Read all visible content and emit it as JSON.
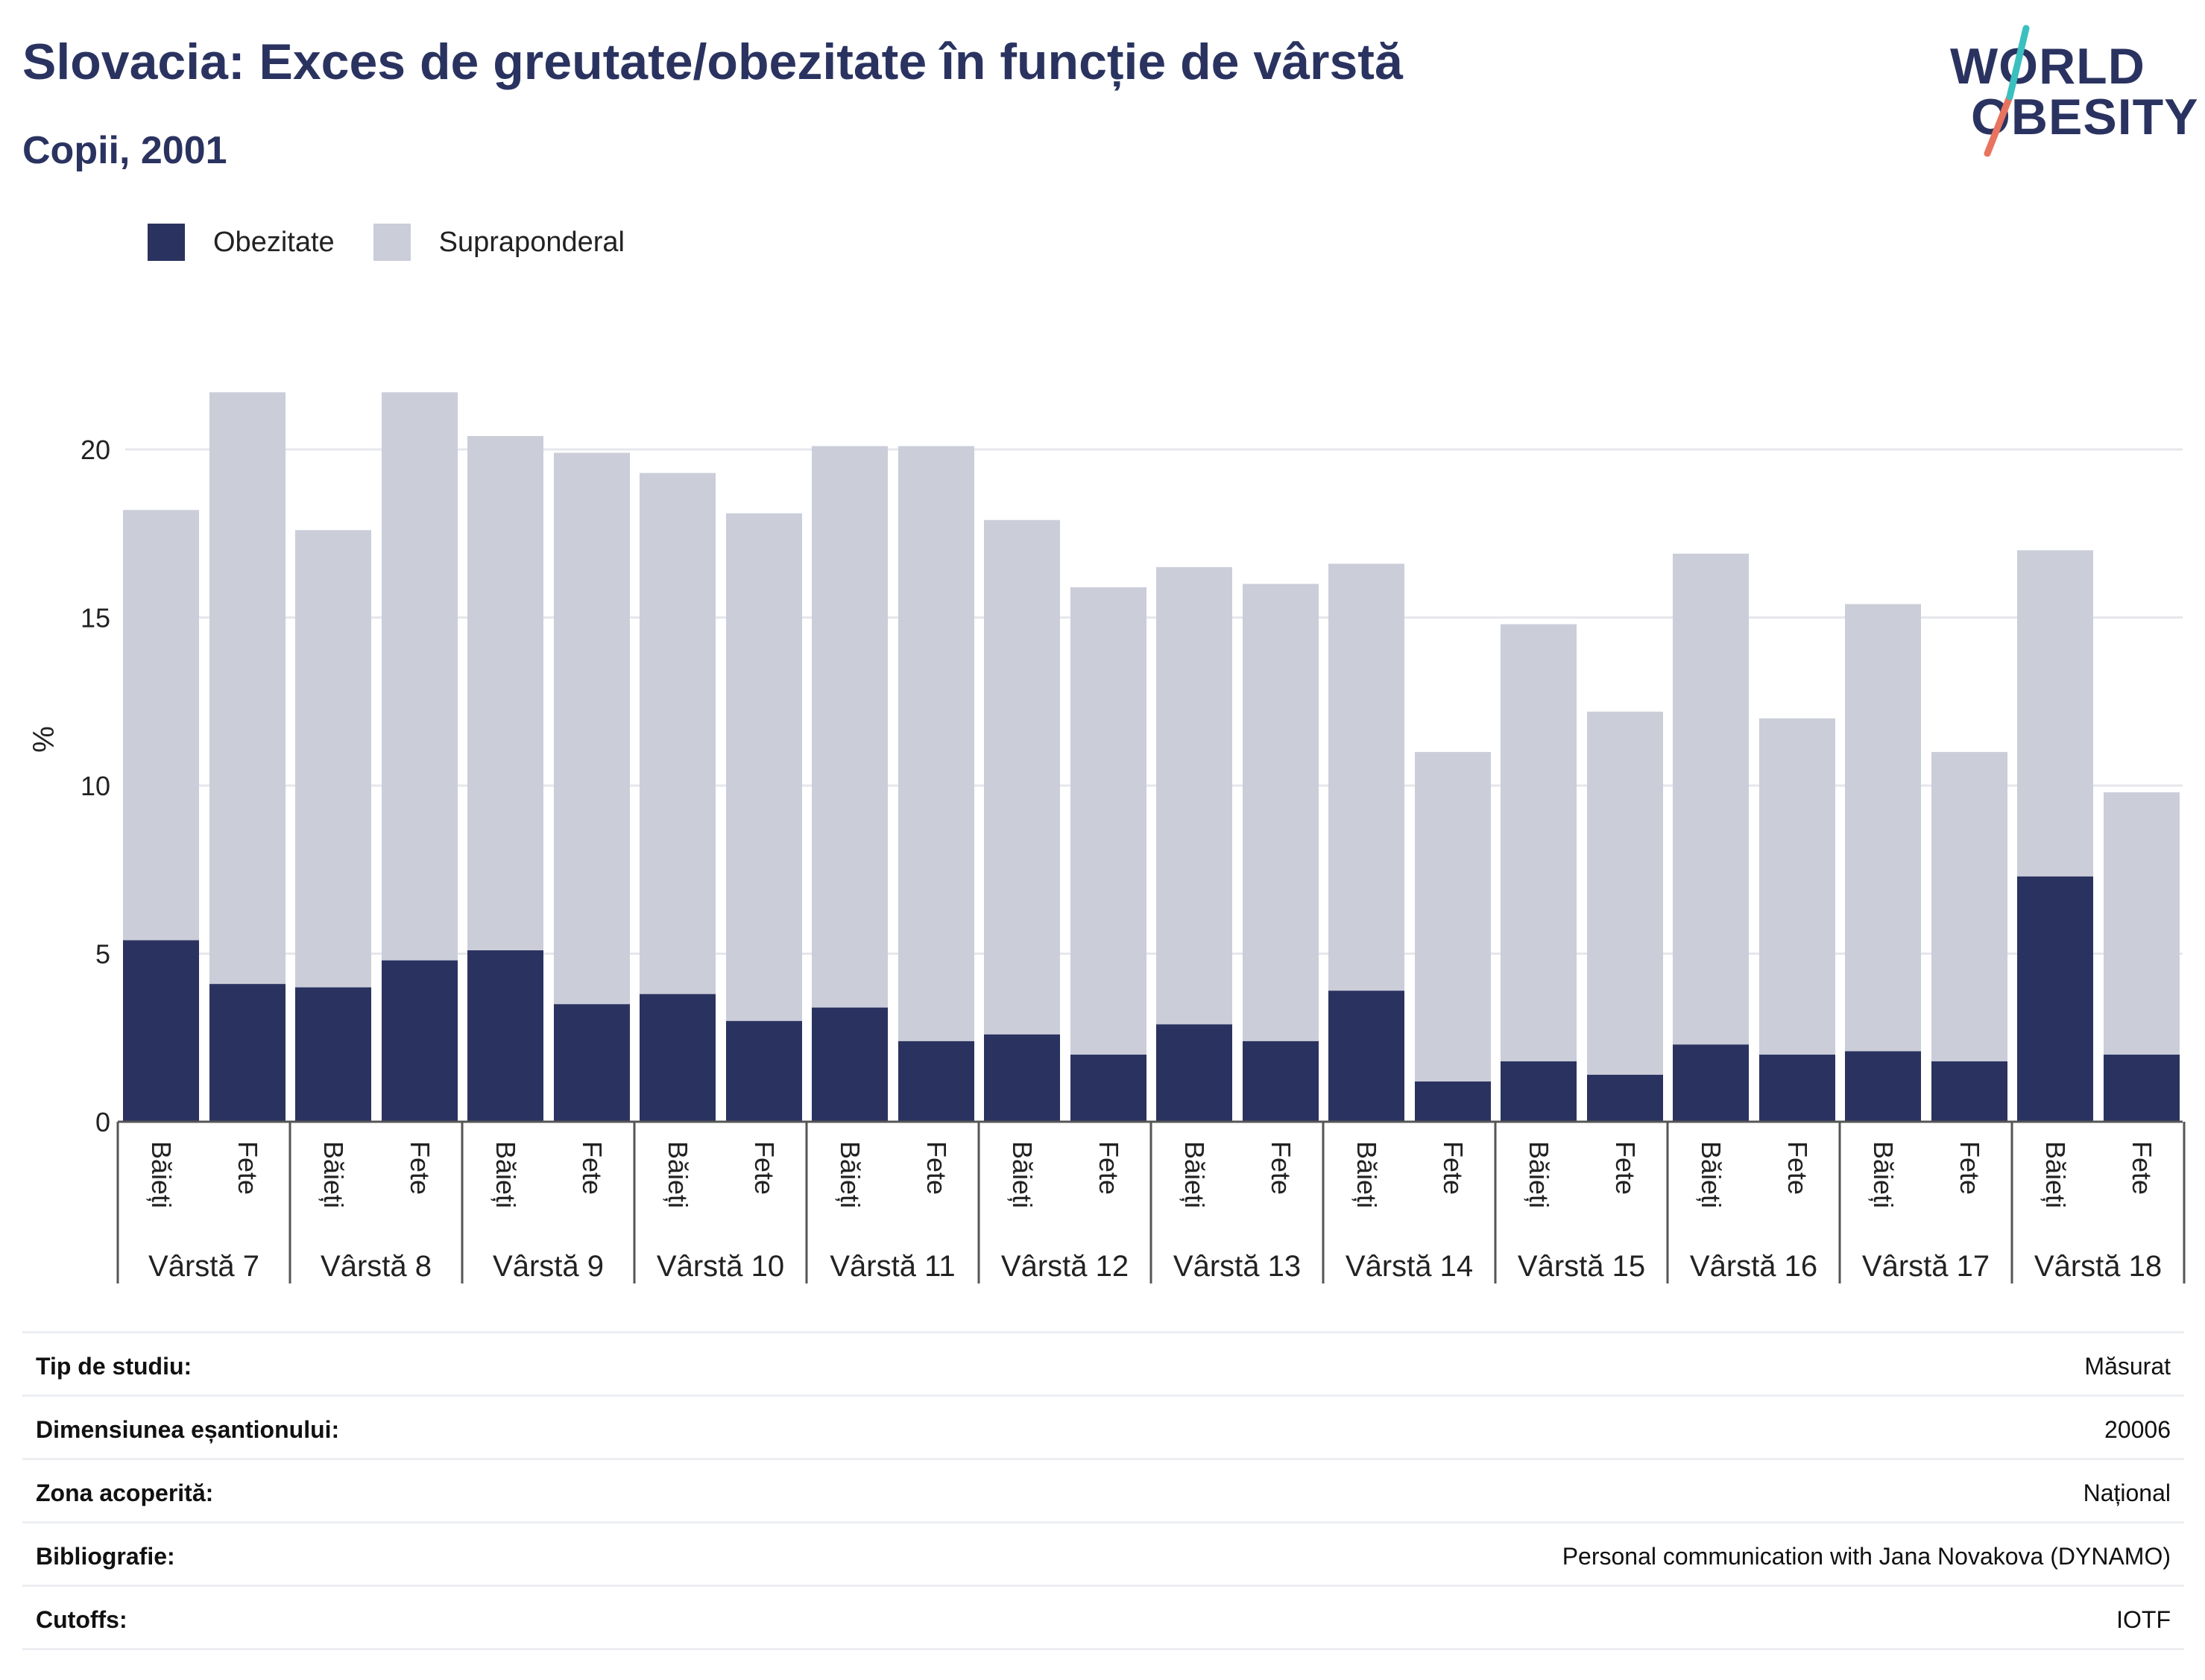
{
  "title": "Slovacia: Exces de greutate/obezitate în funcție de vârstă",
  "subtitle": "Copii, 2001",
  "logo": {
    "line1": "WORLD",
    "line2": "OBESITY",
    "colors": {
      "teal": "#3bbfbf",
      "coral": "#e8735e"
    }
  },
  "colors": {
    "obezitate": "#2a3360",
    "supraponderal": "#cbcdd9",
    "grid": "#e6e7ec",
    "axis": "#555555"
  },
  "chart_data": {
    "type": "bar",
    "stacked": true,
    "ylabel": "%",
    "ylim": [
      0,
      22
    ],
    "yticks": [
      0,
      5,
      10,
      15,
      20
    ],
    "grid": true,
    "legend": {
      "position": "top-left",
      "entries": [
        "Obezitate",
        "Supraponderal"
      ]
    },
    "groups": [
      {
        "label": "Vârstă 7",
        "categories": [
          "Băieți",
          "Fete"
        ]
      },
      {
        "label": "Vârstă 8",
        "categories": [
          "Băieți",
          "Fete"
        ]
      },
      {
        "label": "Vârstă 9",
        "categories": [
          "Băieți",
          "Fete"
        ]
      },
      {
        "label": "Vârstă 10",
        "categories": [
          "Băieți",
          "Fete"
        ]
      },
      {
        "label": "Vârstă 11",
        "categories": [
          "Băieți",
          "Fete"
        ]
      },
      {
        "label": "Vârstă 12",
        "categories": [
          "Băieți",
          "Fete"
        ]
      },
      {
        "label": "Vârstă 13",
        "categories": [
          "Băieți",
          "Fete"
        ]
      },
      {
        "label": "Vârstă 14",
        "categories": [
          "Băieți",
          "Fete"
        ]
      },
      {
        "label": "Vârstă 15",
        "categories": [
          "Băieți",
          "Fete"
        ]
      },
      {
        "label": "Vârstă 16",
        "categories": [
          "Băieți",
          "Fete"
        ]
      },
      {
        "label": "Vârstă 17",
        "categories": [
          "Băieți",
          "Fete"
        ]
      },
      {
        "label": "Vârstă 18",
        "categories": [
          "Băieți",
          "Fete"
        ]
      }
    ],
    "series": [
      {
        "name": "Obezitate",
        "values": [
          5.4,
          4.1,
          4.0,
          4.8,
          5.1,
          3.5,
          3.8,
          3.0,
          3.4,
          2.4,
          2.6,
          2.0,
          2.9,
          2.4,
          3.9,
          1.2,
          1.8,
          1.4,
          2.3,
          2.0,
          2.1,
          1.8,
          7.3,
          2.0
        ]
      },
      {
        "name": "Supraponderal",
        "values": [
          12.8,
          17.6,
          13.6,
          16.9,
          15.3,
          16.4,
          15.5,
          15.1,
          16.7,
          17.7,
          15.3,
          13.9,
          13.6,
          13.6,
          12.7,
          9.8,
          13.0,
          10.8,
          14.6,
          10.0,
          13.3,
          9.2,
          9.7,
          7.8
        ]
      }
    ]
  },
  "meta": [
    {
      "label": "Tip de studiu:",
      "value": "Măsurat"
    },
    {
      "label": "Dimensiunea eșantionului:",
      "value": "20006"
    },
    {
      "label": "Zona acoperită:",
      "value": "Național"
    },
    {
      "label": "Bibliografie:",
      "value": "Personal communication with Jana Novakova (DYNAMO)"
    },
    {
      "label": "Cutoffs:",
      "value": "IOTF"
    }
  ]
}
